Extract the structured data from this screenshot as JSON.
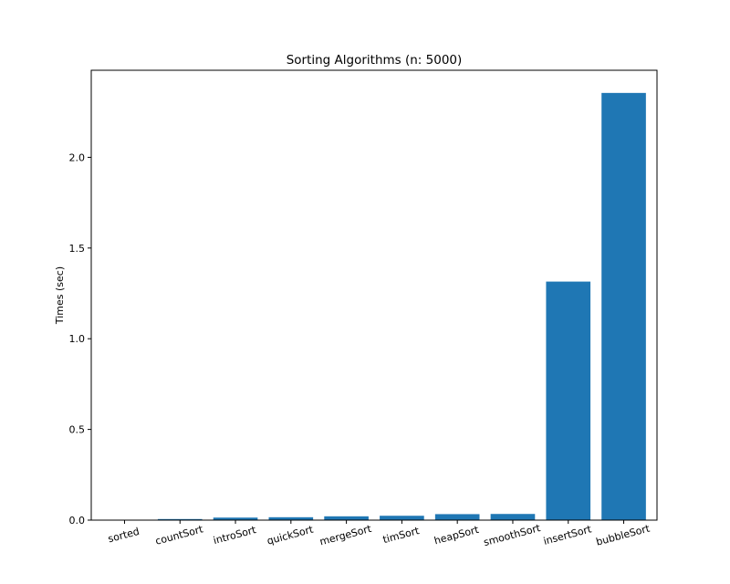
{
  "chart_data": {
    "type": "bar",
    "title": "Sorting Algorithms (n: 5000)",
    "xlabel": "",
    "ylabel": "Times (sec)",
    "categories": [
      "sorted",
      "countSort",
      "introSort",
      "quickSort",
      "mergeSort",
      "timSort",
      "heapSort",
      "smoothSort",
      "insertSort",
      "bubbleSort"
    ],
    "values": [
      0.001,
      0.006,
      0.014,
      0.016,
      0.021,
      0.024,
      0.033,
      0.034,
      1.315,
      2.355
    ],
    "ylim": [
      0,
      2.48
    ],
    "yticks": [
      0.0,
      0.5,
      1.0,
      1.5,
      2.0
    ],
    "ytick_labels": [
      "0.0",
      "0.5",
      "1.0",
      "1.5",
      "2.0"
    ],
    "bar_color": "#1f77b4",
    "grid": false,
    "legend": "none"
  }
}
